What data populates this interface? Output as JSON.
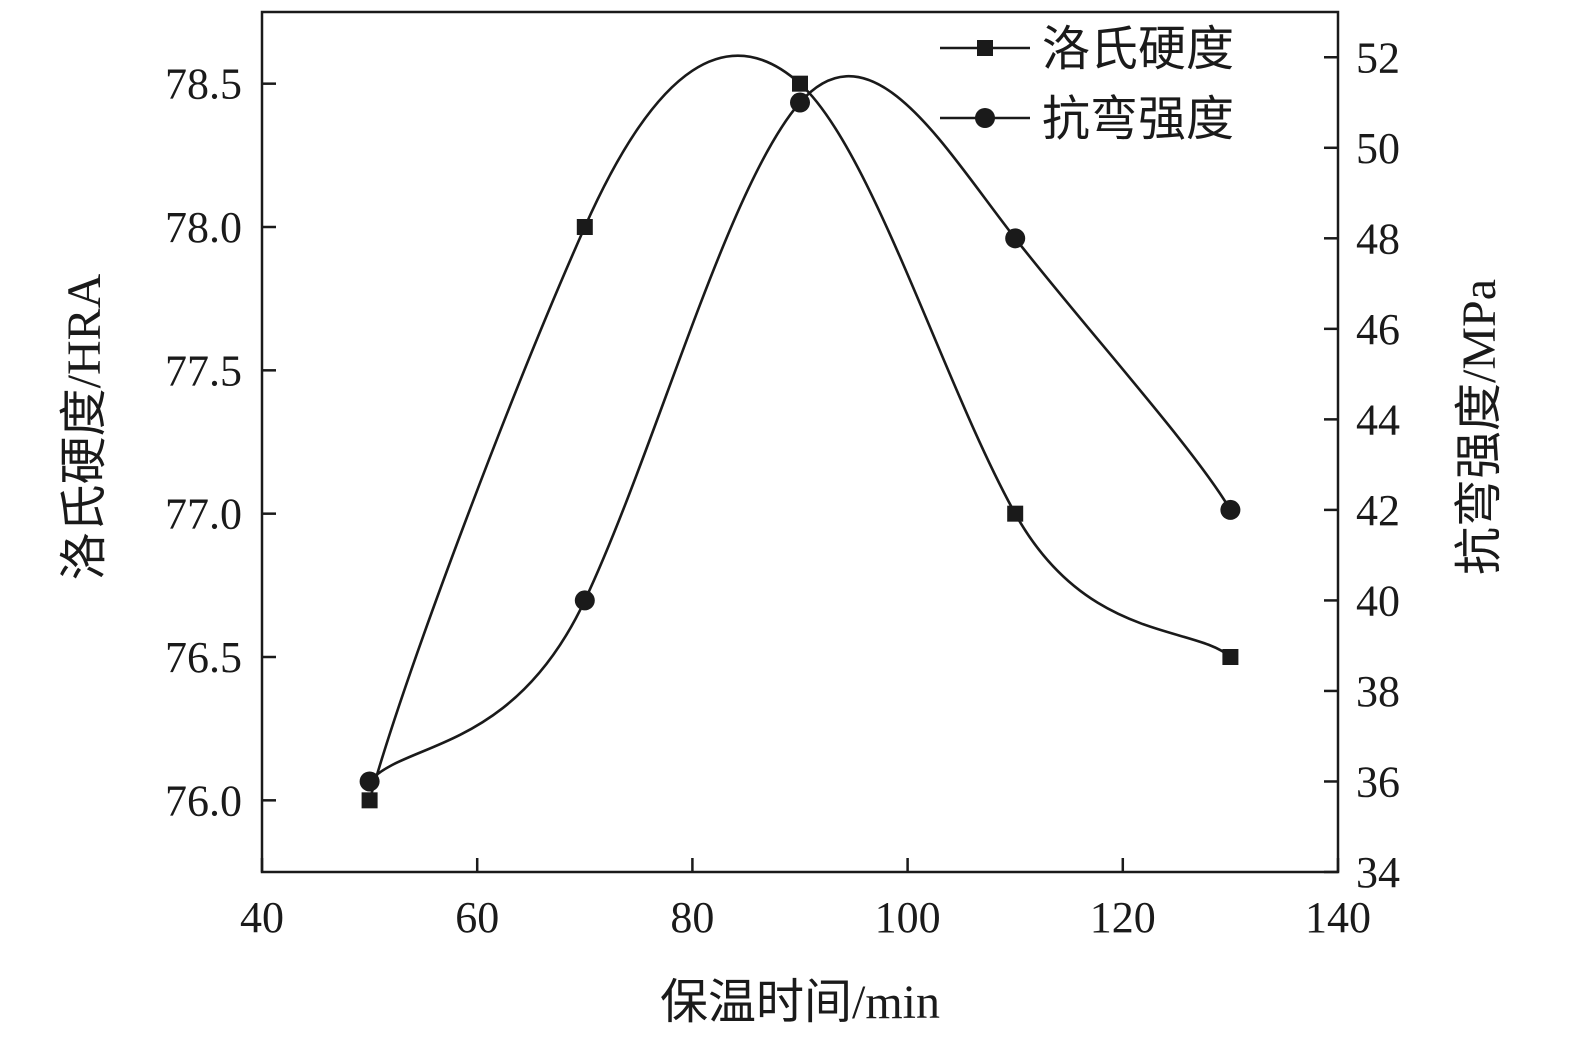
{
  "chart_data": {
    "type": "line",
    "xlabel": "保温时间/min",
    "ylabel_left": "洛氏硬度/HRA",
    "ylabel_right": "抗弯强度/MPa",
    "xlim": [
      40,
      140
    ],
    "xticks": [
      40,
      60,
      80,
      100,
      120,
      140
    ],
    "ylim_left": [
      75.75,
      78.75
    ],
    "yticks_left": [
      "76.0",
      "76.5",
      "77.0",
      "77.5",
      "78.0",
      "78.5"
    ],
    "ylim_right": [
      34,
      53
    ],
    "yticks_right": [
      34,
      36,
      38,
      40,
      42,
      44,
      46,
      48,
      50,
      52
    ],
    "legend_position": "top-right",
    "grid": false,
    "series": [
      {
        "name": "洛氏硬度",
        "axis": "left",
        "marker": "square",
        "smooth": true,
        "x": [
          50,
          70,
          90,
          110,
          130
        ],
        "y": [
          76.0,
          78.0,
          78.5,
          77.0,
          76.5
        ]
      },
      {
        "name": "抗弯强度",
        "axis": "right",
        "marker": "circle",
        "smooth": true,
        "x": [
          50,
          70,
          90,
          110,
          130
        ],
        "y": [
          36,
          40,
          51,
          48,
          42
        ]
      }
    ],
    "colors": {
      "line": "#1a1a1a",
      "marker": "#1a1a1a"
    }
  }
}
